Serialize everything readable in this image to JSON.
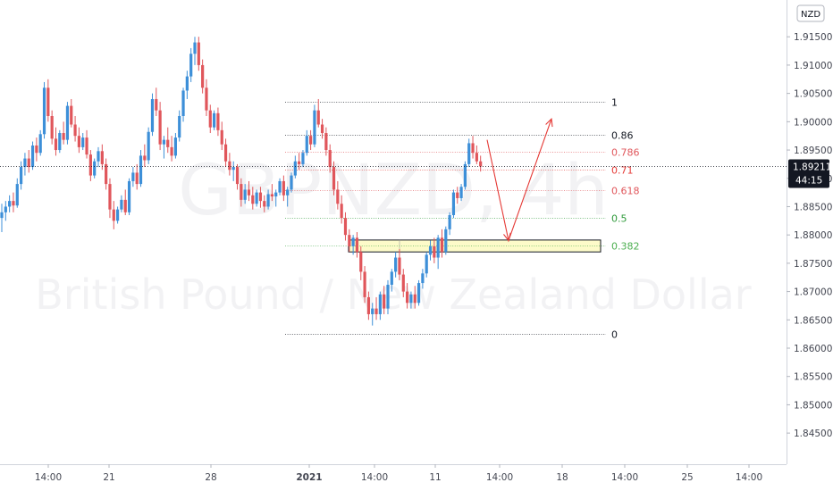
{
  "watermark": {
    "symbol": "GBPNZD, 4h",
    "description": "British Pound / New Zealand Dollar"
  },
  "currency_badge": "NZD",
  "price_tag": {
    "price": "1.89211",
    "countdown": "44:15"
  },
  "colors": {
    "up": "#3d8fd8",
    "down": "#e0565b",
    "price_tag": "#131722",
    "zone_fill": "#fdfbc9",
    "arrow": "#e53935"
  },
  "chart_data": {
    "type": "candlestick",
    "title": "",
    "ylim": [
      1.8395,
      1.9215
    ],
    "yticks": [
      "1.91500",
      "1.91000",
      "1.90500",
      "1.90000",
      "1.89500",
      "1.89000",
      "1.88500",
      "1.88000",
      "1.87500",
      "1.87000",
      "1.86500",
      "1.86000",
      "1.85500",
      "1.85000",
      "1.84500"
    ],
    "xticks": [
      "14:00",
      "21",
      "28",
      "2021",
      "14:00",
      "11",
      "14:00",
      "18",
      "14:00",
      "25",
      "14:00"
    ],
    "current_price": 1.89211,
    "fibonacci": {
      "high": 1.9035,
      "low": 1.8625,
      "levels": [
        {
          "label": "1",
          "ratio": 1,
          "color": "#131722"
        },
        {
          "label": "0.86",
          "ratio": 0.86,
          "color": "#131722"
        },
        {
          "label": "0.786",
          "ratio": 0.786,
          "color": "#e0565b"
        },
        {
          "label": "0.71",
          "ratio": 0.71,
          "color": "#e53935"
        },
        {
          "label": "0.618",
          "ratio": 0.618,
          "color": "#e0565b"
        },
        {
          "label": "0.5",
          "ratio": 0.5,
          "color": "#2e9a3a"
        },
        {
          "label": "0.382",
          "ratio": 0.382,
          "color": "#4caf50"
        },
        {
          "label": "0",
          "ratio": 0,
          "color": "#131722"
        }
      ]
    },
    "zone": {
      "top": 1.8791,
      "bottom": 1.877
    },
    "arrow_path": [
      [
        1.8968,
        0
      ],
      [
        1.879,
        6
      ],
      [
        1.9005,
        12
      ]
    ],
    "candles": [
      [
        1.883,
        1.8855,
        1.8805,
        1.884
      ],
      [
        1.884,
        1.886,
        1.8825,
        1.885
      ],
      [
        1.885,
        1.887,
        1.884,
        1.886
      ],
      [
        1.886,
        1.8875,
        1.884,
        1.8852
      ],
      [
        1.8852,
        1.89,
        1.8848,
        1.889
      ],
      [
        1.889,
        1.893,
        1.888,
        1.892
      ],
      [
        1.892,
        1.8945,
        1.8905,
        1.8935
      ],
      [
        1.8935,
        1.895,
        1.891,
        1.892
      ],
      [
        1.892,
        1.8965,
        1.8915,
        1.8958
      ],
      [
        1.8958,
        1.8972,
        1.893,
        1.8945
      ],
      [
        1.8945,
        1.8985,
        1.894,
        1.8978
      ],
      [
        1.8978,
        1.907,
        1.897,
        1.906
      ],
      [
        1.906,
        1.9075,
        1.9,
        1.901
      ],
      [
        1.901,
        1.902,
        1.896,
        1.897
      ],
      [
        1.897,
        1.899,
        1.894,
        1.895
      ],
      [
        1.895,
        1.8985,
        1.8945,
        1.898
      ],
      [
        1.898,
        1.9,
        1.896,
        1.8968
      ],
      [
        1.8968,
        1.9035,
        1.896,
        1.9028
      ],
      [
        1.9028,
        1.904,
        1.899,
        1.8995
      ],
      [
        1.8995,
        1.901,
        1.8965,
        1.8975
      ],
      [
        1.8975,
        1.899,
        1.8945,
        1.8955
      ],
      [
        1.8955,
        1.898,
        1.895,
        1.8972
      ],
      [
        1.8972,
        1.8985,
        1.8935,
        1.8942
      ],
      [
        1.8942,
        1.895,
        1.8895,
        1.8905
      ],
      [
        1.8905,
        1.8935,
        1.89,
        1.893
      ],
      [
        1.893,
        1.8955,
        1.892,
        1.8948
      ],
      [
        1.8948,
        1.896,
        1.8915,
        1.8925
      ],
      [
        1.8925,
        1.8935,
        1.888,
        1.889
      ],
      [
        1.889,
        1.89,
        1.883,
        1.8845
      ],
      [
        1.8845,
        1.886,
        1.881,
        1.8825
      ],
      [
        1.8825,
        1.885,
        1.882,
        1.8845
      ],
      [
        1.8845,
        1.887,
        1.884,
        1.8862
      ],
      [
        1.8862,
        1.888,
        1.8835,
        1.884
      ],
      [
        1.884,
        1.89,
        1.8835,
        1.8895
      ],
      [
        1.8895,
        1.892,
        1.8885,
        1.891
      ],
      [
        1.891,
        1.8925,
        1.888,
        1.889
      ],
      [
        1.889,
        1.895,
        1.8885,
        1.894
      ],
      [
        1.894,
        1.896,
        1.892,
        1.8932
      ],
      [
        1.8932,
        1.899,
        1.8925,
        1.8982
      ],
      [
        1.8982,
        1.905,
        1.8975,
        1.904
      ],
      [
        1.904,
        1.906,
        1.901,
        1.902
      ],
      [
        1.902,
        1.9035,
        1.895,
        1.896
      ],
      [
        1.896,
        1.8975,
        1.8935,
        1.8968
      ],
      [
        1.8968,
        1.899,
        1.8945,
        1.8955
      ],
      [
        1.8955,
        1.8975,
        1.893,
        1.894
      ],
      [
        1.894,
        1.898,
        1.8935,
        1.8972
      ],
      [
        1.8972,
        1.902,
        1.8965,
        1.901
      ],
      [
        1.901,
        1.906,
        1.9,
        1.9055
      ],
      [
        1.9055,
        1.909,
        1.904,
        1.908
      ],
      [
        1.908,
        1.913,
        1.907,
        1.912
      ],
      [
        1.912,
        1.915,
        1.91,
        1.914
      ],
      [
        1.914,
        1.915,
        1.909,
        1.91
      ],
      [
        1.91,
        1.911,
        1.905,
        1.906
      ],
      [
        1.906,
        1.9075,
        1.901,
        1.902
      ],
      [
        1.902,
        1.903,
        1.898,
        1.899
      ],
      [
        1.899,
        1.902,
        1.8985,
        1.9015
      ],
      [
        1.9015,
        1.9025,
        1.8975,
        1.8985
      ],
      [
        1.8985,
        1.9,
        1.895,
        1.896
      ],
      [
        1.896,
        1.897,
        1.892,
        1.893
      ],
      [
        1.893,
        1.8945,
        1.8905,
        1.8915
      ],
      [
        1.8915,
        1.893,
        1.8895,
        1.892
      ],
      [
        1.892,
        1.8925,
        1.888,
        1.889
      ],
      [
        1.889,
        1.89,
        1.885,
        1.8862
      ],
      [
        1.8862,
        1.889,
        1.8855,
        1.888
      ],
      [
        1.888,
        1.8895,
        1.886,
        1.887
      ],
      [
        1.887,
        1.8885,
        1.8845,
        1.8855
      ],
      [
        1.8855,
        1.888,
        1.885,
        1.8875
      ],
      [
        1.8875,
        1.8885,
        1.8848,
        1.886
      ],
      [
        1.886,
        1.887,
        1.884,
        1.885
      ],
      [
        1.885,
        1.888,
        1.8845,
        1.8872
      ],
      [
        1.8872,
        1.889,
        1.886,
        1.8868
      ],
      [
        1.8868,
        1.888,
        1.885,
        1.8875
      ],
      [
        1.8875,
        1.89,
        1.887,
        1.8895
      ],
      [
        1.8895,
        1.8905,
        1.886,
        1.887
      ],
      [
        1.887,
        1.8885,
        1.885,
        1.888
      ],
      [
        1.888,
        1.891,
        1.8875,
        1.8905
      ],
      [
        1.8905,
        1.894,
        1.89,
        1.893
      ],
      [
        1.893,
        1.8945,
        1.8915,
        1.8925
      ],
      [
        1.8925,
        1.895,
        1.892,
        1.8945
      ],
      [
        1.8945,
        1.8985,
        1.894,
        1.8975
      ],
      [
        1.8975,
        1.8985,
        1.895,
        1.896
      ],
      [
        1.896,
        1.903,
        1.8955,
        1.902
      ],
      [
        1.902,
        1.904,
        1.899,
        1.8995
      ],
      [
        1.8995,
        1.9005,
        1.897,
        1.898
      ],
      [
        1.898,
        1.899,
        1.894,
        1.895
      ],
      [
        1.895,
        1.896,
        1.891,
        1.892
      ],
      [
        1.892,
        1.893,
        1.887,
        1.888
      ],
      [
        1.888,
        1.8895,
        1.8845,
        1.8855
      ],
      [
        1.8855,
        1.887,
        1.882,
        1.883
      ],
      [
        1.883,
        1.884,
        1.879,
        1.88
      ],
      [
        1.88,
        1.881,
        1.877,
        1.878
      ],
      [
        1.878,
        1.88,
        1.8765,
        1.8795
      ],
      [
        1.8795,
        1.8805,
        1.876,
        1.877
      ],
      [
        1.877,
        1.878,
        1.872,
        1.8735
      ],
      [
        1.8735,
        1.8745,
        1.868,
        1.869
      ],
      [
        1.869,
        1.87,
        1.865,
        1.866
      ],
      [
        1.866,
        1.868,
        1.864,
        1.867
      ],
      [
        1.867,
        1.869,
        1.865,
        1.866
      ],
      [
        1.866,
        1.87,
        1.865,
        1.8695
      ],
      [
        1.8695,
        1.871,
        1.866,
        1.867
      ],
      [
        1.867,
        1.872,
        1.866,
        1.8712
      ],
      [
        1.8712,
        1.874,
        1.87,
        1.8735
      ],
      [
        1.8735,
        1.877,
        1.8725,
        1.876
      ],
      [
        1.876,
        1.8775,
        1.872,
        1.873
      ],
      [
        1.873,
        1.874,
        1.869,
        1.87
      ],
      [
        1.87,
        1.8715,
        1.867,
        1.868
      ],
      [
        1.868,
        1.87,
        1.867,
        1.8695
      ],
      [
        1.8695,
        1.871,
        1.867,
        1.868
      ],
      [
        1.868,
        1.872,
        1.8675,
        1.8715
      ],
      [
        1.8715,
        1.874,
        1.8705,
        1.8732
      ],
      [
        1.8732,
        1.877,
        1.8725,
        1.8765
      ],
      [
        1.8765,
        1.879,
        1.8755,
        1.878
      ],
      [
        1.878,
        1.8795,
        1.875,
        1.876
      ],
      [
        1.876,
        1.88,
        1.874,
        1.8795
      ],
      [
        1.8795,
        1.881,
        1.876,
        1.877
      ],
      [
        1.877,
        1.8815,
        1.8765,
        1.881
      ],
      [
        1.881,
        1.884,
        1.88,
        1.8835
      ],
      [
        1.8835,
        1.888,
        1.883,
        1.8875
      ],
      [
        1.8875,
        1.8885,
        1.8855,
        1.8865
      ],
      [
        1.8865,
        1.889,
        1.886,
        1.8885
      ],
      [
        1.8885,
        1.893,
        1.888,
        1.8925
      ],
      [
        1.8925,
        1.897,
        1.892,
        1.8962
      ],
      [
        1.8962,
        1.8975,
        1.8935,
        1.8945
      ],
      [
        1.8945,
        1.8958,
        1.8925,
        1.893
      ],
      [
        1.893,
        1.894,
        1.8912,
        1.8921
      ]
    ]
  }
}
